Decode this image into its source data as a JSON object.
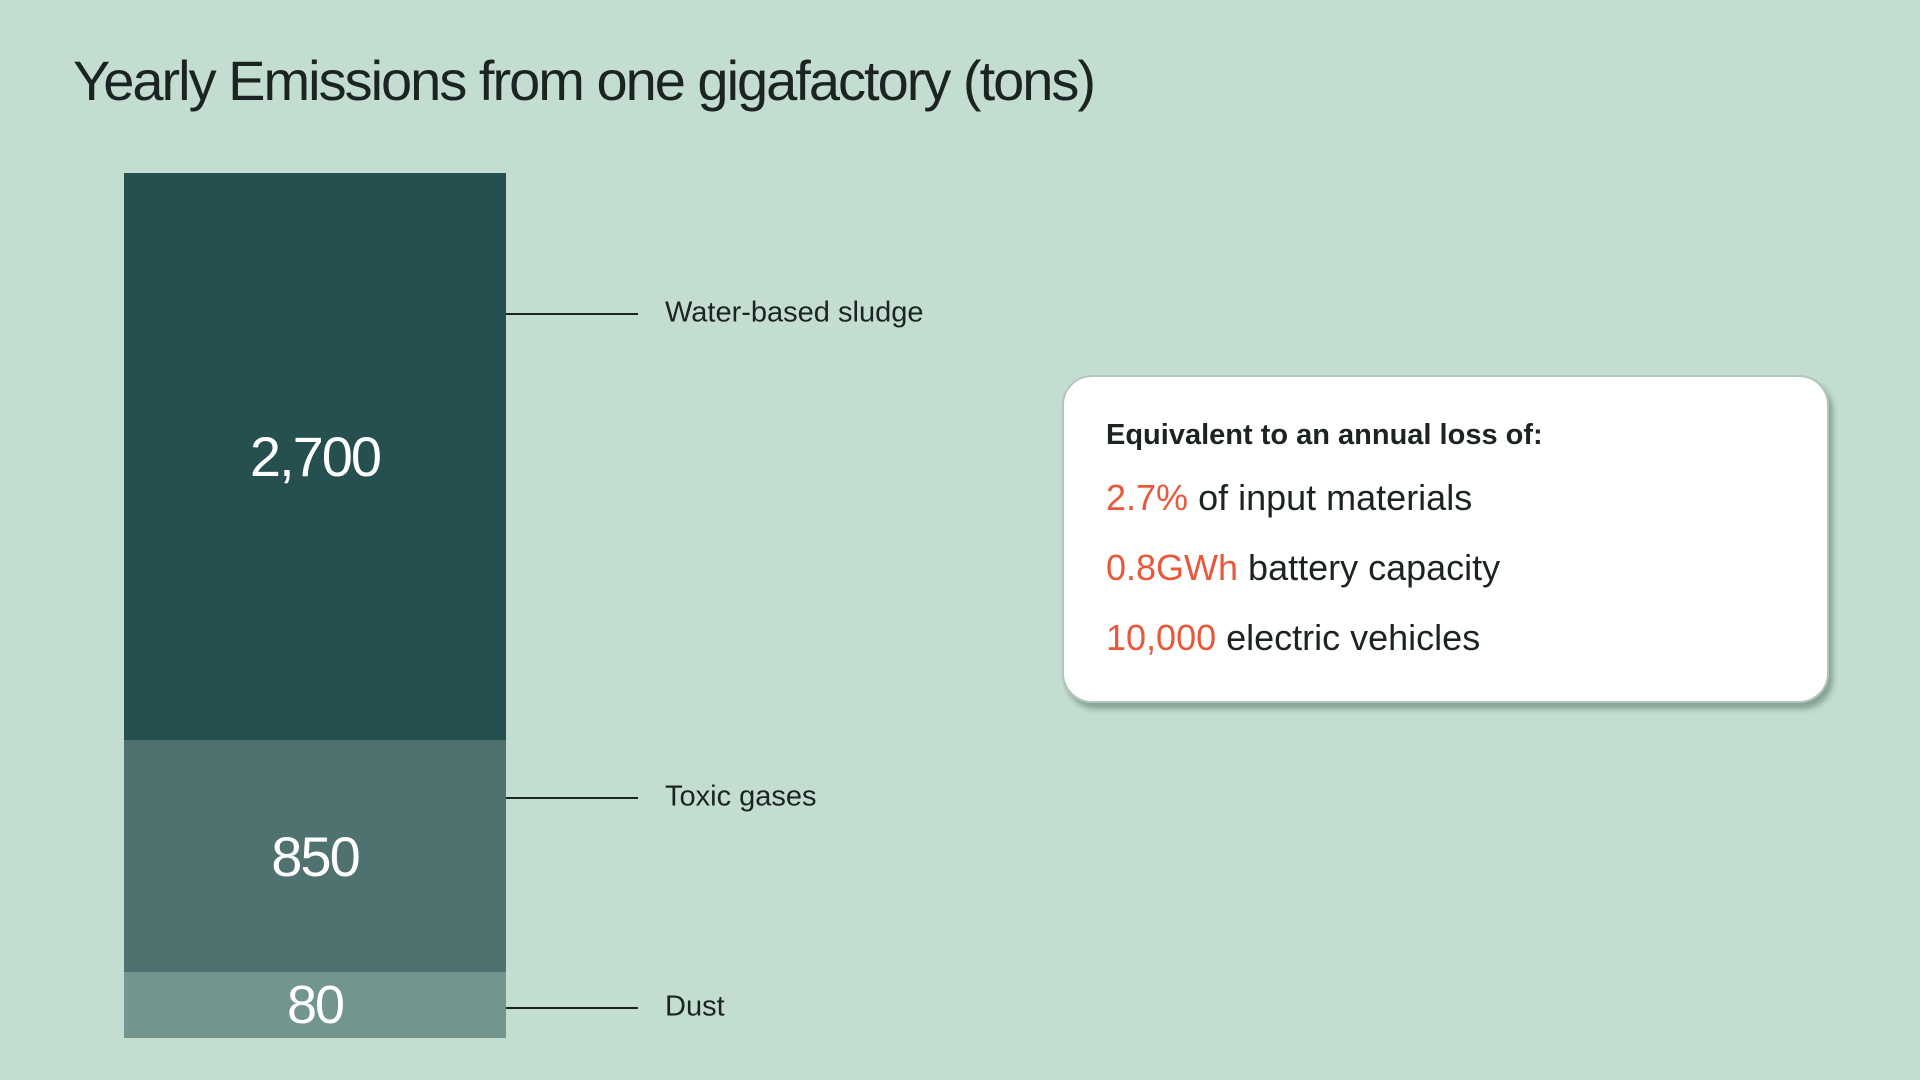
{
  "chart_data": {
    "type": "bar",
    "stacked": true,
    "title": "Yearly Emissions from one gigafactory (tons)",
    "categories": [
      "Water-based sludge",
      "Toxic gases",
      "Dust"
    ],
    "values": [
      2700,
      850,
      80
    ],
    "value_labels": [
      "2,700",
      "850",
      "80"
    ],
    "colors": [
      "#264f50",
      "#4f7270",
      "#72958e"
    ]
  },
  "callout": {
    "heading": "Equivalent to an annual loss of:",
    "rows": [
      {
        "highlight": "2.7%",
        "text": " of input materials"
      },
      {
        "highlight": "0.8GWh",
        "text": " battery capacity"
      },
      {
        "highlight": "10,000",
        "text": " electric vehicles"
      }
    ],
    "highlight_color": "#e8583a"
  }
}
